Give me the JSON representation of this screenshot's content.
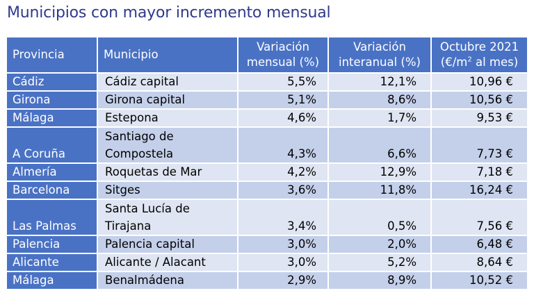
{
  "title": "Municipios con mayor incremento mensual",
  "headers": {
    "provincia": "Provincia",
    "municipio": "Municipio",
    "var_mensual_line1": "Variación",
    "var_mensual_line2": "mensual (%)",
    "var_interanual_line1": "Variación",
    "var_interanual_line2": "interanual (%)",
    "price_line1": "Octubre 2021",
    "price_line2_pre": "(€/m",
    "price_line2_sup": "2",
    "price_line2_post": " al mes)"
  },
  "rows": [
    {
      "provincia": "Cádiz",
      "municipio_l1": "Cádiz capital",
      "municipio_l2": "",
      "var_mensual": "5,5%",
      "var_interanual": "12,1%",
      "price": "10,96 €"
    },
    {
      "provincia": "Girona",
      "municipio_l1": "Girona capital",
      "municipio_l2": "",
      "var_mensual": "5,1%",
      "var_interanual": "8,6%",
      "price": "10,56 €"
    },
    {
      "provincia": "Málaga",
      "municipio_l1": "Estepona",
      "municipio_l2": "",
      "var_mensual": "4,6%",
      "var_interanual": "1,7%",
      "price": "9,53 €"
    },
    {
      "provincia": "A Coruña",
      "municipio_l1": "Santiago de",
      "municipio_l2": "Compostela",
      "var_mensual": "4,3%",
      "var_interanual": "6,6%",
      "price": "7,73 €"
    },
    {
      "provincia": "Almería",
      "municipio_l1": "Roquetas de Mar",
      "municipio_l2": "",
      "var_mensual": "4,2%",
      "var_interanual": "12,9%",
      "price": "7,18 €"
    },
    {
      "provincia": "Barcelona",
      "municipio_l1": "Sitges",
      "municipio_l2": "",
      "var_mensual": "3,6%",
      "var_interanual": "11,8%",
      "price": "16,24 €"
    },
    {
      "provincia": "Las Palmas",
      "municipio_l1": "Santa Lucía de",
      "municipio_l2": "Tirajana",
      "var_mensual": "3,4%",
      "var_interanual": "0,5%",
      "price": "7,56 €"
    },
    {
      "provincia": "Palencia",
      "municipio_l1": "Palencia capital",
      "municipio_l2": "",
      "var_mensual": "3,0%",
      "var_interanual": "2,0%",
      "price": "6,48 €"
    },
    {
      "provincia": "Alicante",
      "municipio_l1": "Alicante / Alacant",
      "municipio_l2": "",
      "var_mensual": "3,0%",
      "var_interanual": "5,2%",
      "price": "8,64 €"
    },
    {
      "provincia": "Málaga",
      "municipio_l1": "Benalmádena",
      "municipio_l2": "",
      "var_mensual": "2,9%",
      "var_interanual": "8,9%",
      "price": "10,52 €"
    }
  ],
  "colors": {
    "title": "#2f3a8c",
    "header_bg": "#4a72c4",
    "row_light": "#dfe5f2",
    "row_dark": "#c4d0ea"
  }
}
